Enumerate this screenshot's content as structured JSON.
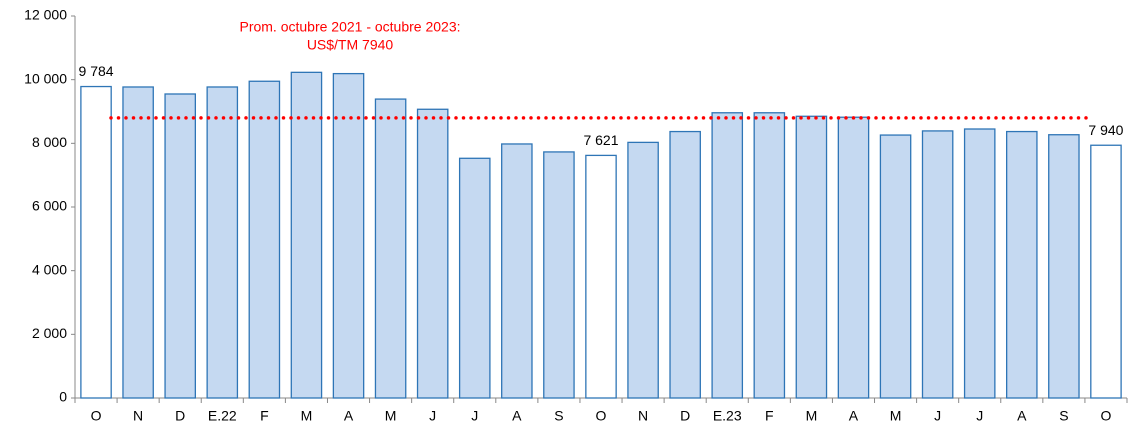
{
  "chart_data": {
    "type": "bar",
    "categories": [
      "O",
      "N",
      "D",
      "E.22",
      "F",
      "M",
      "A",
      "M",
      "J",
      "J",
      "A",
      "S",
      "O",
      "N",
      "D",
      "E.23",
      "F",
      "M",
      "A",
      "M",
      "J",
      "J",
      "A",
      "S",
      "O"
    ],
    "values": [
      9784,
      9770,
      9550,
      9770,
      9950,
      10230,
      10190,
      9390,
      9070,
      7530,
      7980,
      7730,
      7621,
      8030,
      8370,
      8960,
      8960,
      8850,
      8820,
      8260,
      8390,
      8450,
      8370,
      8270,
      7940
    ],
    "value_labels": [
      "9 784",
      null,
      null,
      null,
      null,
      null,
      null,
      null,
      null,
      null,
      null,
      null,
      "7 621",
      null,
      null,
      null,
      null,
      null,
      null,
      null,
      null,
      null,
      null,
      null,
      "7 940"
    ],
    "colors": [
      "#ffffff",
      "#c5d9f1",
      "#c5d9f1",
      "#c5d9f1",
      "#c5d9f1",
      "#c5d9f1",
      "#c5d9f1",
      "#c5d9f1",
      "#c5d9f1",
      "#c5d9f1",
      "#c5d9f1",
      "#c5d9f1",
      "#ffffff",
      "#c5d9f1",
      "#c5d9f1",
      "#c5d9f1",
      "#c5d9f1",
      "#c5d9f1",
      "#c5d9f1",
      "#c5d9f1",
      "#c5d9f1",
      "#c5d9f1",
      "#c5d9f1",
      "#c5d9f1",
      "#ffffff"
    ],
    "edge_color": "#2e75b6",
    "ylim": [
      0,
      12000
    ],
    "yticks": [
      0,
      {
        "value": 2000,
        "label": "2 000"
      },
      {
        "value": 4000,
        "label": "4 000"
      },
      {
        "value": 6000,
        "label": "6 000"
      },
      {
        "value": 8000,
        "label": "8 000"
      },
      {
        "value": 10000,
        "label": "10 000"
      },
      {
        "value": 12000,
        "label": "12 000"
      }
    ],
    "reference_line": {
      "value": 8800,
      "color": "#ff0000"
    },
    "annotation": [
      "Prom. octubre 2021 - octubre 2023:",
      "US$/TM 7940"
    ],
    "grid": false
  }
}
